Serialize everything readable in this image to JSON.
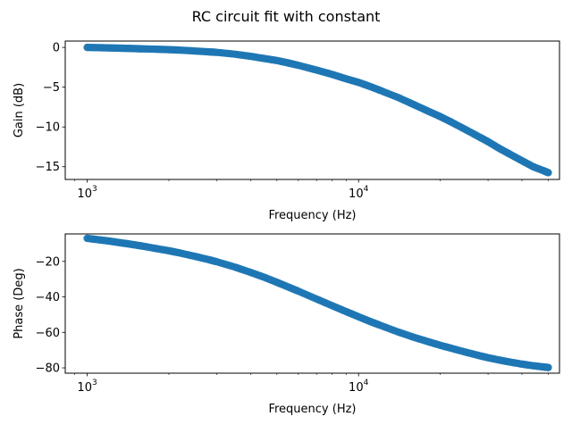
{
  "figure": {
    "title": "RC circuit fit with constant",
    "marker_color": "#1f77b4"
  },
  "chart_data": [
    {
      "type": "scatter",
      "x_scale": "log",
      "xlim": [
        830,
        55000
      ],
      "ylim": [
        -16.6,
        0.8
      ],
      "xlabel": "Frequency (Hz)",
      "ylabel": "Gain (dB)",
      "x_ticks": [
        {
          "value": 1000,
          "base": "10",
          "exponent": "3"
        },
        {
          "value": 10000,
          "base": "10",
          "exponent": "4"
        }
      ],
      "y_ticks": [
        {
          "value": 0,
          "label": "0"
        },
        {
          "value": -5,
          "label": "−5"
        },
        {
          "value": -10,
          "label": "−10"
        },
        {
          "value": -15,
          "label": "−15"
        }
      ],
      "grid": false,
      "series": [
        {
          "x": [
            1000,
            1100,
            1200,
            1300,
            1400,
            1500,
            1600,
            1800,
            2000,
            2200,
            2500,
            2800,
            3000,
            3500,
            4000,
            4500,
            5000,
            5500,
            6000,
            7000,
            8000,
            9000,
            10000,
            11000,
            12000,
            14000,
            16000,
            18000,
            20000,
            22000,
            25000,
            28000,
            30000,
            33000,
            36000,
            40000,
            44000,
            48000,
            50000
          ],
          "y": [
            0.0,
            -0.03,
            -0.06,
            -0.09,
            -0.12,
            -0.15,
            -0.18,
            -0.23,
            -0.28,
            -0.34,
            -0.45,
            -0.56,
            -0.62,
            -0.85,
            -1.12,
            -1.4,
            -1.65,
            -1.95,
            -2.25,
            -2.85,
            -3.4,
            -3.95,
            -4.4,
            -4.9,
            -5.4,
            -6.3,
            -7.2,
            -8.0,
            -8.7,
            -9.4,
            -10.4,
            -11.3,
            -11.85,
            -12.7,
            -13.4,
            -14.25,
            -15.0,
            -15.5,
            -15.75
          ]
        }
      ]
    },
    {
      "type": "scatter",
      "x_scale": "log",
      "xlim": [
        830,
        55000
      ],
      "ylim": [
        -83,
        -4.5
      ],
      "xlabel": "Frequency (Hz)",
      "ylabel": "Phase (Deg)",
      "x_ticks": [
        {
          "value": 1000,
          "base": "10",
          "exponent": "3"
        },
        {
          "value": 10000,
          "base": "10",
          "exponent": "4"
        }
      ],
      "y_ticks": [
        {
          "value": -20,
          "label": "−20"
        },
        {
          "value": -40,
          "label": "−40"
        },
        {
          "value": -60,
          "label": "−60"
        },
        {
          "value": -80,
          "label": "−80"
        }
      ],
      "grid": false,
      "series": [
        {
          "x": [
            1000,
            1100,
            1200,
            1300,
            1400,
            1500,
            1600,
            1800,
            2000,
            2200,
            2500,
            2800,
            3000,
            3500,
            4000,
            4500,
            5000,
            5500,
            6000,
            7000,
            8000,
            9000,
            10000,
            11000,
            12000,
            14000,
            16000,
            18000,
            20000,
            22000,
            25000,
            28000,
            30000,
            33000,
            36000,
            40000,
            44000,
            48000,
            50000
          ],
          "y": [
            -7.0,
            -7.8,
            -8.5,
            -9.3,
            -10.0,
            -10.7,
            -11.4,
            -12.8,
            -14.0,
            -15.3,
            -17.2,
            -19.0,
            -20.2,
            -23.2,
            -26.2,
            -29.0,
            -31.8,
            -34.4,
            -36.8,
            -41.2,
            -45.0,
            -48.3,
            -51.2,
            -53.8,
            -56.0,
            -59.8,
            -62.8,
            -65.2,
            -67.3,
            -69.0,
            -71.3,
            -73.2,
            -74.3,
            -75.6,
            -76.7,
            -77.9,
            -78.8,
            -79.5,
            -79.8
          ]
        }
      ]
    }
  ]
}
